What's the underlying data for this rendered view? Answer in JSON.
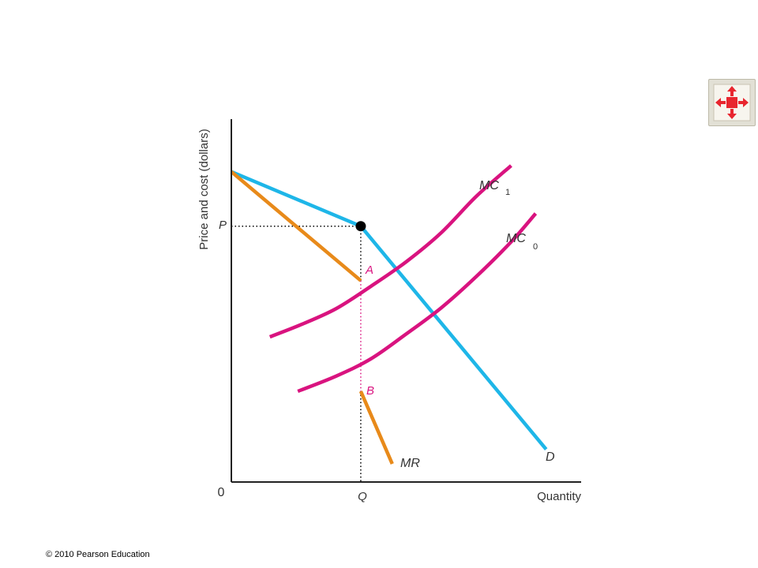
{
  "footer": {
    "copyright": "© 2010 Pearson Education"
  },
  "toolbar": {
    "fullscreen_icon": "expand-arrows-icon"
  },
  "colors": {
    "demand": "#1eb6e8",
    "cost": "#d9137f",
    "revenue": "#e88a1a",
    "axis": "#222222",
    "guide": "#000000",
    "button_bg": "#e2e0d5",
    "button_red": "#e8262f"
  },
  "chart_data": {
    "type": "line",
    "ylabel": "Price and cost (dollars)",
    "xlabel": "Quantity",
    "origin_label": "0",
    "x_ticks": [
      "Q"
    ],
    "y_ticks": [
      "P"
    ],
    "xlim": [
      0,
      100
    ],
    "ylim": [
      0,
      100
    ],
    "grid": false,
    "kink": {
      "x": 37,
      "y": 70.5
    },
    "series": [
      {
        "name": "D",
        "role": "demand",
        "x": [
          0,
          37,
          90
        ],
        "y": [
          85.5,
          70.5,
          9
        ]
      },
      {
        "name": "MR",
        "role": "revenue",
        "x": [
          0,
          37
        ],
        "y": [
          85.5,
          55.5
        ]
      },
      {
        "name": "MR",
        "role": "revenue",
        "x": [
          37,
          46
        ],
        "y": [
          25,
          5
        ]
      },
      {
        "name": "MC 1",
        "role": "cost",
        "x": [
          11,
          20,
          30,
          40,
          50,
          60,
          70,
          80
        ],
        "y": [
          40,
          43.4,
          47.8,
          54,
          60.7,
          68.7,
          78.7,
          87.2
        ]
      },
      {
        "name": "MC 0",
        "role": "cost",
        "x": [
          19,
          30,
          40,
          50,
          60,
          70,
          80,
          87
        ],
        "y": [
          25,
          29.2,
          34,
          40.8,
          48,
          56.6,
          66.2,
          74
        ]
      }
    ],
    "points": [
      {
        "label": "A",
        "x": 37,
        "y": 55.5
      },
      {
        "label": "B",
        "x": 37,
        "y": 25
      }
    ],
    "series_labels": {
      "demand": "D",
      "revenue": "MR",
      "mc1": "MC",
      "mc1_sub": "1",
      "mc0": "MC",
      "mc0_sub": "0"
    }
  }
}
